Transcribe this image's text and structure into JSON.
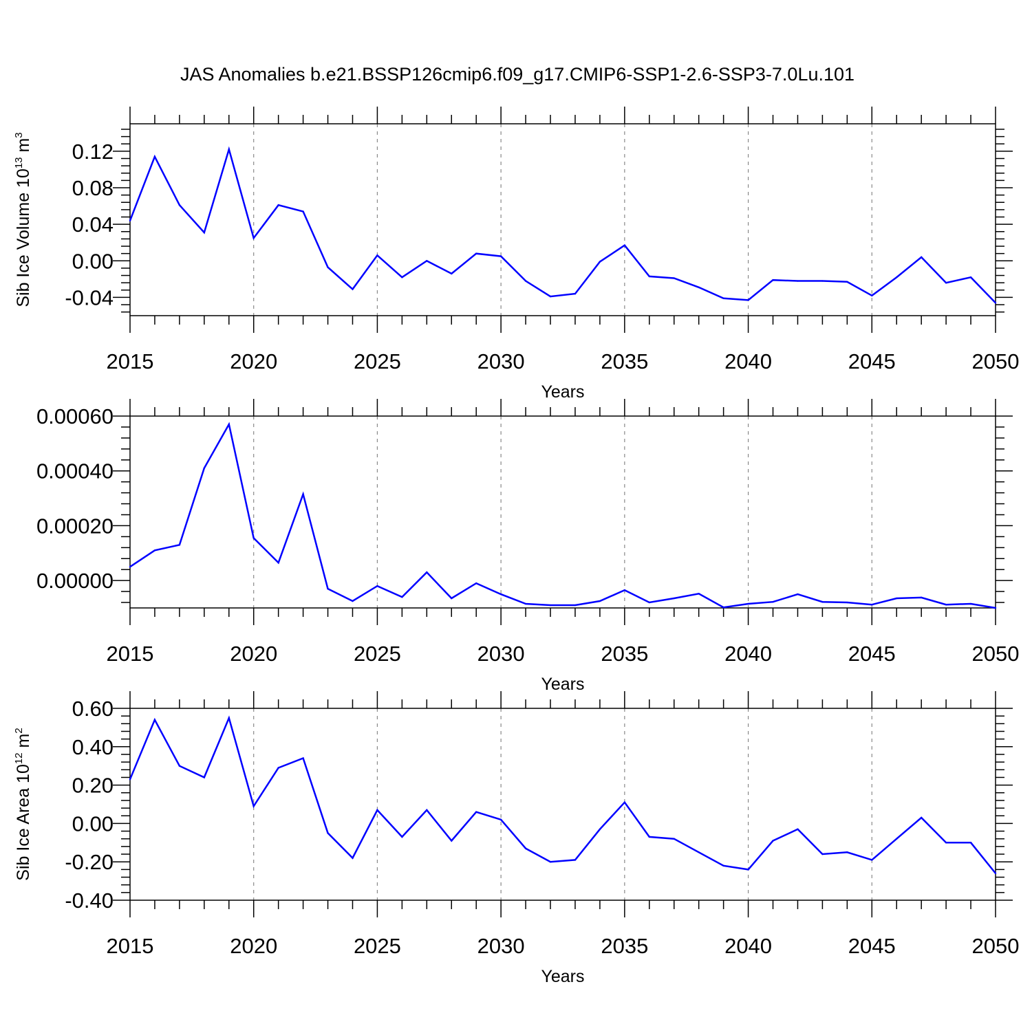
{
  "title": "JAS Anomalies b.e21.BSSP126cmip6.f09_g17.CMIP6-SSP1-2.6-SSP3-7.0Lu.101",
  "colors": {
    "line": "#0000ff",
    "axis": "#000000",
    "grid": "#888888"
  },
  "chart_data": [
    {
      "type": "line",
      "name": "volume",
      "ylabel": {
        "text": "Sib Ice Volume 10",
        "exp": "13",
        "unit": " m",
        "unit_exp": "3"
      },
      "xlabel": "Years",
      "xlim": [
        2015,
        2050
      ],
      "ylim": [
        -0.06,
        0.15
      ],
      "yticks": [
        -0.04,
        0.0,
        0.04,
        0.08,
        0.12
      ],
      "ytick_labels": [
        "-0.04",
        "0.00",
        "0.04",
        "0.08",
        "0.12"
      ],
      "xticks": [
        2015,
        2020,
        2025,
        2030,
        2035,
        2040,
        2045,
        2050
      ],
      "xtick_labels": [
        "2015",
        "2020",
        "2025",
        "2030",
        "2035",
        "2040",
        "2045",
        "2050"
      ],
      "grid_years": [
        2020,
        2025,
        2030,
        2035,
        2040,
        2045
      ],
      "x": [
        2015,
        2016,
        2017,
        2018,
        2019,
        2020,
        2021,
        2022,
        2023,
        2024,
        2025,
        2026,
        2027,
        2028,
        2029,
        2030,
        2031,
        2032,
        2033,
        2034,
        2035,
        2036,
        2037,
        2038,
        2039,
        2040,
        2041,
        2042,
        2043,
        2044,
        2045,
        2046,
        2047,
        2048,
        2049,
        2050
      ],
      "values": [
        0.044,
        0.114,
        0.061,
        0.031,
        0.122,
        0.025,
        0.061,
        0.054,
        -0.007,
        -0.031,
        0.006,
        -0.018,
        0.0,
        -0.014,
        0.008,
        0.005,
        -0.022,
        -0.039,
        -0.036,
        -0.001,
        0.017,
        -0.017,
        -0.019,
        -0.029,
        -0.041,
        -0.043,
        -0.021,
        -0.022,
        -0.022,
        -0.023,
        -0.038,
        -0.018,
        0.004,
        -0.024,
        -0.018,
        -0.046
      ]
    },
    {
      "type": "line",
      "name": "middle",
      "ylabel": null,
      "xlabel": "Years",
      "xlim": [
        2015,
        2050
      ],
      "ylim": [
        -0.0001,
        0.0006
      ],
      "yticks": [
        0.0,
        0.0002,
        0.0004,
        0.0006
      ],
      "ytick_labels": [
        "0.00000",
        "0.00020",
        "0.00040",
        "0.00060"
      ],
      "xticks": [
        2015,
        2020,
        2025,
        2030,
        2035,
        2040,
        2045,
        2050
      ],
      "xtick_labels": [
        "2015",
        "2020",
        "2025",
        "2030",
        "2035",
        "2040",
        "2045",
        "2050"
      ],
      "grid_years": [
        2020,
        2025,
        2030,
        2035,
        2040,
        2045
      ],
      "x": [
        2015,
        2016,
        2017,
        2018,
        2019,
        2020,
        2021,
        2022,
        2023,
        2024,
        2025,
        2026,
        2027,
        2028,
        2029,
        2030,
        2031,
        2032,
        2033,
        2034,
        2035,
        2036,
        2037,
        2038,
        2039,
        2040,
        2041,
        2042,
        2043,
        2044,
        2045,
        2046,
        2047,
        2048,
        2049,
        2050
      ],
      "values": [
        5e-05,
        0.00011,
        0.00013,
        0.00041,
        0.00057,
        0.000155,
        6.5e-05,
        0.000315,
        -3e-05,
        -7.5e-05,
        -2e-05,
        -6e-05,
        3e-05,
        -6.5e-05,
        -1e-05,
        -5e-05,
        -8.5e-05,
        -9e-05,
        -9e-05,
        -7.5e-05,
        -3.5e-05,
        -8e-05,
        -6.5e-05,
        -4.8e-05,
        -9.8e-05,
        -8.5e-05,
        -7.8e-05,
        -5e-05,
        -7.8e-05,
        -8e-05,
        -8.8e-05,
        -6.5e-05,
        -6.2e-05,
        -8.8e-05,
        -8.5e-05,
        -0.0001
      ]
    },
    {
      "type": "line",
      "name": "area",
      "ylabel": {
        "text": "Sib Ice Area 10",
        "exp": "12",
        "unit": " m",
        "unit_exp": "2"
      },
      "xlabel": "Years",
      "xlim": [
        2015,
        2050
      ],
      "ylim": [
        -0.4,
        0.6
      ],
      "yticks": [
        -0.4,
        -0.2,
        0.0,
        0.2,
        0.4,
        0.6
      ],
      "ytick_labels": [
        "-0.40",
        "-0.20",
        "0.00",
        "0.20",
        "0.40",
        "0.60"
      ],
      "xticks": [
        2015,
        2020,
        2025,
        2030,
        2035,
        2040,
        2045,
        2050
      ],
      "xtick_labels": [
        "2015",
        "2020",
        "2025",
        "2030",
        "2035",
        "2040",
        "2045",
        "2050"
      ],
      "grid_years": [
        2020,
        2025,
        2030,
        2035,
        2040,
        2045
      ],
      "x": [
        2015,
        2016,
        2017,
        2018,
        2019,
        2020,
        2021,
        2022,
        2023,
        2024,
        2025,
        2026,
        2027,
        2028,
        2029,
        2030,
        2031,
        2032,
        2033,
        2034,
        2035,
        2036,
        2037,
        2038,
        2039,
        2040,
        2041,
        2042,
        2043,
        2044,
        2045,
        2046,
        2047,
        2048,
        2049,
        2050
      ],
      "values": [
        0.23,
        0.54,
        0.3,
        0.24,
        0.55,
        0.09,
        0.29,
        0.34,
        -0.05,
        -0.18,
        0.07,
        -0.07,
        0.07,
        -0.09,
        0.06,
        0.02,
        -0.13,
        -0.2,
        -0.19,
        -0.03,
        0.11,
        -0.07,
        -0.08,
        -0.15,
        -0.22,
        -0.24,
        -0.09,
        -0.03,
        -0.16,
        -0.15,
        -0.19,
        -0.08,
        0.03,
        -0.1,
        -0.1,
        -0.26
      ]
    }
  ]
}
